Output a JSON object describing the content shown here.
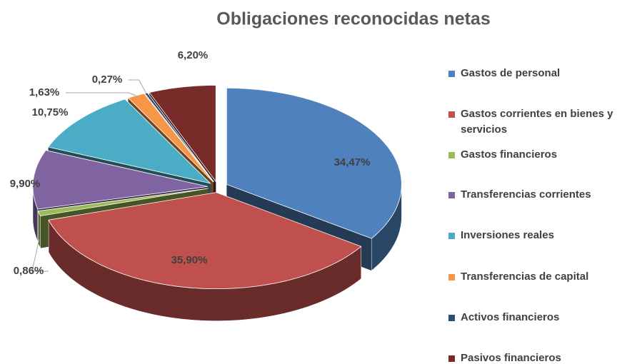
{
  "chart_data": {
    "type": "pie3d",
    "title": "Obligaciones reconocidas netas",
    "categories": [
      "Gastos de personal",
      "Gastos corrientes en bienes y servicios",
      "Gastos financieros",
      "Transferencias corrientes",
      "Inversiones reales",
      "Transferencias de capital",
      "Activos financieros",
      "Pasivos financieros"
    ],
    "values": [
      34.47,
      35.9,
      0.86,
      9.9,
      10.75,
      1.63,
      0.27,
      6.2
    ],
    "value_labels": [
      "34,47%",
      "35,90%",
      "0,86%",
      "9,90%",
      "10,75%",
      "1,63%",
      "0,27%",
      "6,20%"
    ],
    "colors": [
      "#4f81bd",
      "#c0504d",
      "#9bbb59",
      "#8064a2",
      "#4bacc6",
      "#f79646",
      "#2c4d75",
      "#772c2a"
    ],
    "legend": "right"
  }
}
